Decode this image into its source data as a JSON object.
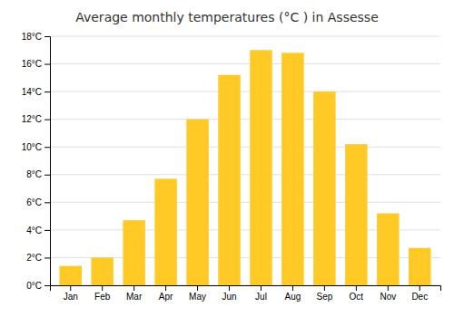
{
  "chart_data": {
    "type": "bar",
    "title": "Average monthly temperatures (°C ) in Assesse",
    "categories": [
      "Jan",
      "Feb",
      "Mar",
      "Apr",
      "May",
      "Jun",
      "Jul",
      "Aug",
      "Sep",
      "Oct",
      "Nov",
      "Dec"
    ],
    "values": [
      1.4,
      2.0,
      4.7,
      7.7,
      12.0,
      15.2,
      17.0,
      16.8,
      14.0,
      10.2,
      5.2,
      2.7
    ],
    "color": "#FFC926",
    "ylim": [
      0,
      18
    ],
    "yticks": [
      {
        "value": 0,
        "label": "0°C"
      },
      {
        "value": 2,
        "label": "2°C"
      },
      {
        "value": 4,
        "label": "4°C"
      },
      {
        "value": 6,
        "label": "6°C"
      },
      {
        "value": 8,
        "label": "8°C"
      },
      {
        "value": 10,
        "label": "10°C"
      },
      {
        "value": 12,
        "label": "12°C"
      },
      {
        "value": 14,
        "label": "14°C"
      },
      {
        "value": 16,
        "label": "16°C"
      },
      {
        "value": 18,
        "label": "18°C"
      }
    ],
    "grid": true
  }
}
